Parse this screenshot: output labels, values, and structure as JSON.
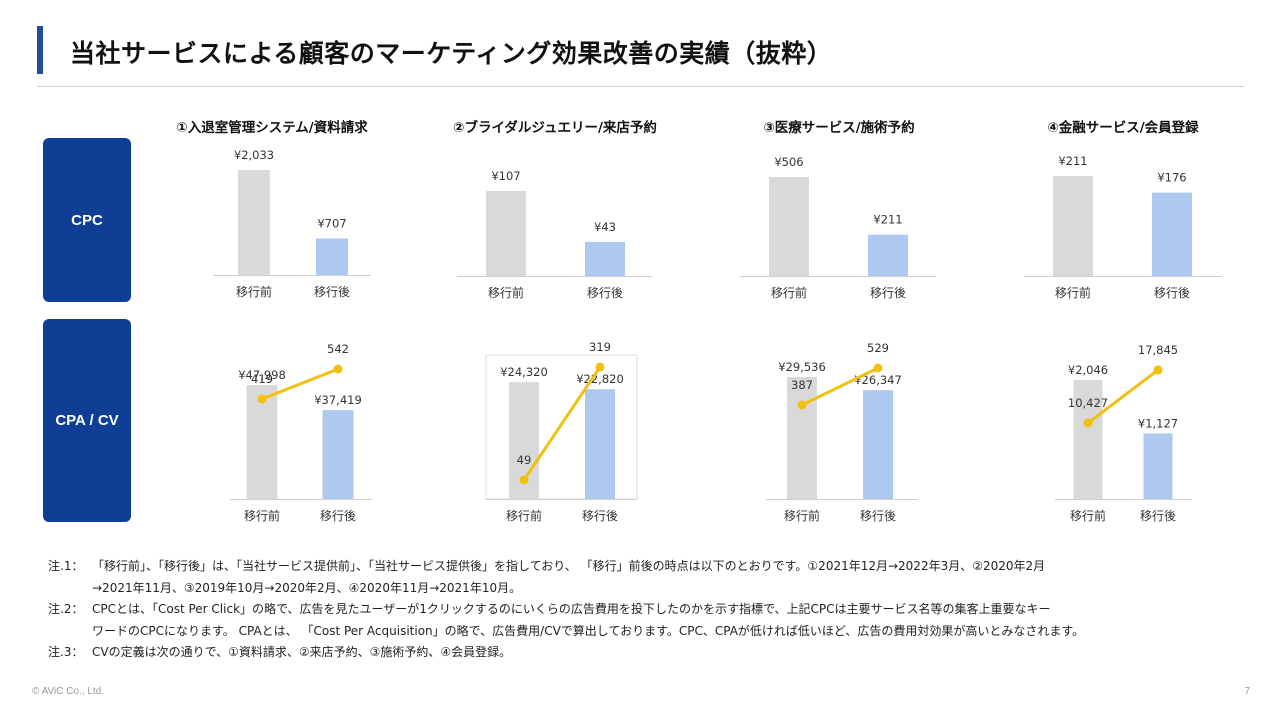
{
  "page": {
    "title": "当社サービスによる顧客のマーケティング効果改善の実績（抜粋）",
    "page_number": "7",
    "copyright": "© AViC Co., Ltd."
  },
  "row_labels": {
    "cpc": "CPC",
    "cpa": "CPA / CV"
  },
  "categories": [
    "①入退室管理システム/資料請求",
    "②ブライダルジュエリー/来店予約",
    "③医療サービス/施術予約",
    "④金融サービス/会員登録"
  ],
  "colors": {
    "before": "#d9d9d9",
    "after": "#aec9f0",
    "line": "#f2c00f",
    "label_box": "#0e3f95",
    "accent": "#1f4e9e"
  },
  "chart_data": [
    {
      "type": "bar",
      "panel": "CPC ①",
      "categories": [
        "移行前",
        "移行後"
      ],
      "values": [
        2033,
        707
      ],
      "labels": [
        "¥2,033",
        "¥707"
      ]
    },
    {
      "type": "bar",
      "panel": "CPC ②",
      "categories": [
        "移行前",
        "移行後"
      ],
      "values": [
        107,
        43
      ],
      "labels": [
        "¥107",
        "¥43"
      ]
    },
    {
      "type": "bar",
      "panel": "CPC ③",
      "categories": [
        "移行前",
        "移行後"
      ],
      "values": [
        506,
        211
      ],
      "labels": [
        "¥506",
        "¥211"
      ]
    },
    {
      "type": "bar",
      "panel": "CPC ④",
      "categories": [
        "移行前",
        "移行後"
      ],
      "values": [
        211,
        176
      ],
      "labels": [
        "¥211",
        "¥176"
      ]
    },
    {
      "type": "bar",
      "panel": "CPA/CV ①",
      "categories": [
        "移行前",
        "移行後"
      ],
      "values": [
        47998,
        37419
      ],
      "labels": [
        "¥47,998",
        "¥37,419"
      ],
      "line": {
        "values": [
          419,
          542
        ],
        "labels": [
          "419",
          "542"
        ]
      }
    },
    {
      "type": "bar",
      "panel": "CPA/CV ②",
      "categories": [
        "移行前",
        "移行後"
      ],
      "values": [
        24320,
        22820
      ],
      "labels": [
        "¥24,320",
        "¥22,820"
      ],
      "line": {
        "values": [
          49,
          319
        ],
        "labels": [
          "49",
          "319"
        ]
      }
    },
    {
      "type": "bar",
      "panel": "CPA/CV ③",
      "categories": [
        "移行前",
        "移行後"
      ],
      "values": [
        29536,
        26347
      ],
      "labels": [
        "¥29,536",
        "¥26,347"
      ],
      "line": {
        "values": [
          387,
          529
        ],
        "labels": [
          "387",
          "529"
        ]
      }
    },
    {
      "type": "bar",
      "panel": "CPA/CV ④",
      "categories": [
        "移行前",
        "移行後"
      ],
      "values": [
        2046,
        1127
      ],
      "labels": [
        "¥2,046",
        "¥1,127"
      ],
      "line": {
        "values": [
          10427,
          17845
        ],
        "labels": [
          "10,427",
          "17,845"
        ]
      }
    }
  ],
  "notes": [
    {
      "key": "注.1：",
      "lines": [
        "「移行前」、「移行後」は、「当社サービス提供前」、「当社サービス提供後」を指しており、 「移行」前後の時点は以下のとおりです。①2021年12月→2022年3月、②2020年2月",
        "→2021年11月、③2019年10月→2020年2月、④2020年11月→2021年10月。"
      ]
    },
    {
      "key": "注.2：",
      "lines": [
        "CPCとは、「Cost Per Click」の略で、広告を見たユーザーが1クリックするのにいくらの広告費用を投下したのかを示す指標で、上記CPCは主要サービス名等の集客上重要なキー",
        "ワードのCPCになります。 CPAとは、 「Cost Per Acquisition」の略で、広告費用/CVで算出しております。CPC、CPAが低ければ低いほど、広告の費用対効果が高いとみなされます。"
      ]
    },
    {
      "key": "注.3：",
      "lines": [
        "CVの定義は次の通りで、①資料請求、②来店予約、③施術予約、④会員登録。"
      ]
    }
  ]
}
